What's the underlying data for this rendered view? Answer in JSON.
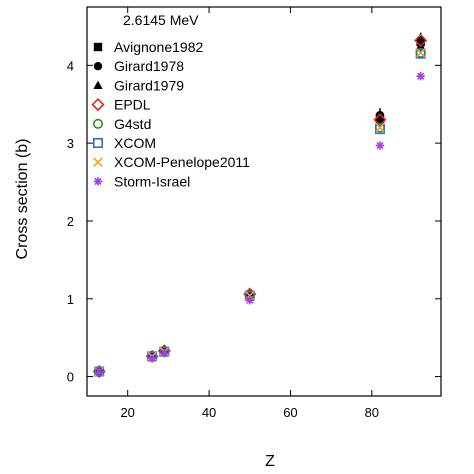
{
  "chart_data": {
    "type": "scatter",
    "annotation": "2.6145 MeV",
    "xlabel": "Z",
    "ylabel": "Cross section  (b)",
    "xlim": [
      10,
      97
    ],
    "ylim": [
      -0.25,
      4.75
    ],
    "xticks": [
      20,
      40,
      60,
      80
    ],
    "yticks": [
      0,
      1,
      2,
      3,
      4
    ],
    "grid": false,
    "legend_position": "top-left",
    "series": [
      {
        "name": "Avignone1982",
        "marker": "square-filled",
        "color": "#000000",
        "points": [
          [
            13,
            0.06
          ],
          [
            26,
            0.25
          ],
          [
            29,
            0.32
          ],
          [
            50,
            1.05
          ],
          [
            82,
            3.32
          ],
          [
            92,
            4.3
          ]
        ]
      },
      {
        "name": "Girard1978",
        "marker": "circle-filled",
        "color": "#000000",
        "points": [
          [
            13,
            0.07
          ],
          [
            26,
            0.26
          ],
          [
            29,
            0.33
          ],
          [
            50,
            1.06
          ],
          [
            82,
            3.36
          ],
          [
            92,
            4.33
          ]
        ]
      },
      {
        "name": "Girard1979",
        "marker": "triangle-filled",
        "color": "#000000",
        "points": [
          [
            13,
            0.065
          ],
          [
            26,
            0.255
          ],
          [
            29,
            0.325
          ],
          [
            50,
            1.05
          ],
          [
            82,
            3.3
          ],
          [
            92,
            4.25
          ]
        ]
      },
      {
        "name": "EPDL",
        "marker": "diamond-open",
        "color": "#e8251c",
        "points": [
          [
            13,
            0.065
          ],
          [
            26,
            0.26
          ],
          [
            29,
            0.33
          ],
          [
            50,
            1.06
          ],
          [
            82,
            3.3
          ],
          [
            92,
            4.32
          ]
        ]
      },
      {
        "name": "G4std",
        "marker": "circle-open",
        "color": "#2e8b1e",
        "points": [
          [
            13,
            0.065
          ],
          [
            26,
            0.26
          ],
          [
            29,
            0.32
          ],
          [
            50,
            1.04
          ],
          [
            82,
            3.2
          ],
          [
            92,
            4.16
          ]
        ]
      },
      {
        "name": "XCOM",
        "marker": "square-open",
        "color": "#2b6fd6",
        "points": [
          [
            13,
            0.065
          ],
          [
            26,
            0.26
          ],
          [
            29,
            0.32
          ],
          [
            50,
            1.04
          ],
          [
            82,
            3.18
          ],
          [
            92,
            4.15
          ]
        ]
      },
      {
        "name": "XCOM-Penelope2011",
        "marker": "x",
        "color": "#f0a020",
        "points": [
          [
            13,
            0.065
          ],
          [
            26,
            0.26
          ],
          [
            29,
            0.32
          ],
          [
            50,
            1.04
          ],
          [
            82,
            3.2
          ],
          [
            92,
            4.16
          ]
        ]
      },
      {
        "name": "Storm-Israel",
        "marker": "asterisk",
        "color": "#a040e0",
        "points": [
          [
            13,
            0.06
          ],
          [
            26,
            0.24
          ],
          [
            29,
            0.3
          ],
          [
            50,
            0.98
          ],
          [
            82,
            2.97
          ],
          [
            92,
            3.86
          ]
        ]
      }
    ],
    "error_bars": [
      {
        "x": 82,
        "low": 3.18,
        "high": 3.45
      },
      {
        "x": 92,
        "low": 4.18,
        "high": 4.42
      }
    ]
  }
}
